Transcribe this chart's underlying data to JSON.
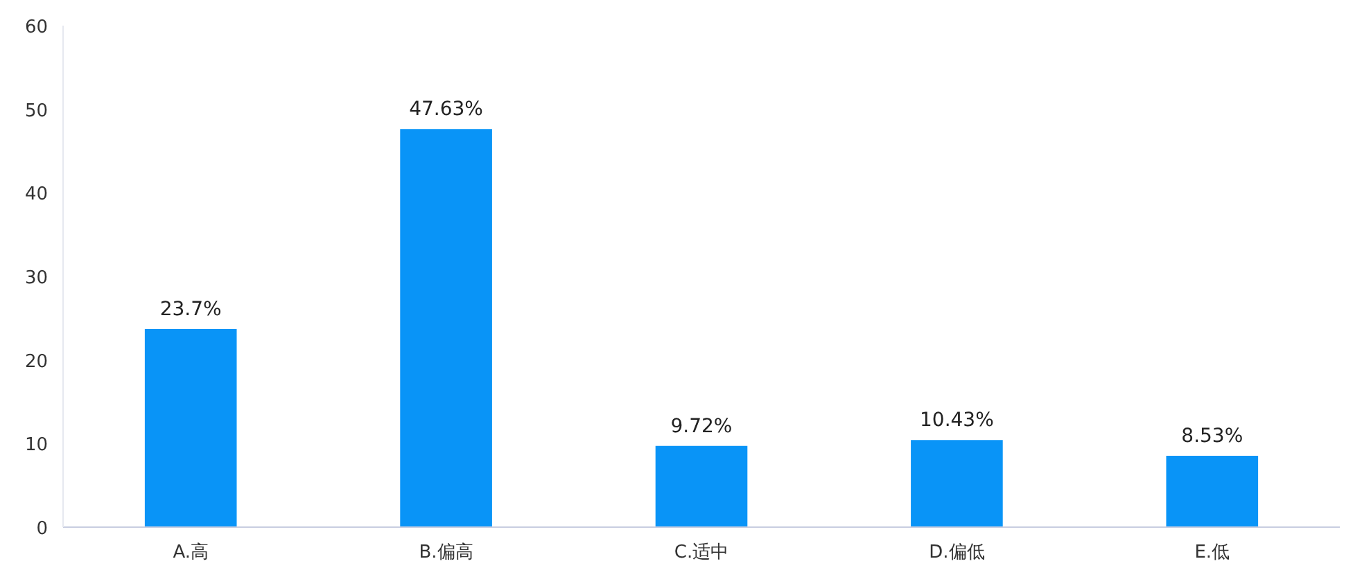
{
  "chart_data": {
    "type": "bar",
    "categories": [
      "A.高",
      "B.偏高",
      "C.适中",
      "D.偏低",
      "E.低"
    ],
    "values": [
      23.7,
      47.63,
      9.72,
      10.43,
      8.53
    ],
    "value_labels": [
      "23.7%",
      "47.63%",
      "9.72%",
      "10.43%",
      "8.53%"
    ],
    "color": "#0994f7",
    "ylim": [
      0,
      60
    ],
    "yticks": [
      0,
      10,
      20,
      30,
      40,
      50,
      60
    ],
    "grid": false
  }
}
